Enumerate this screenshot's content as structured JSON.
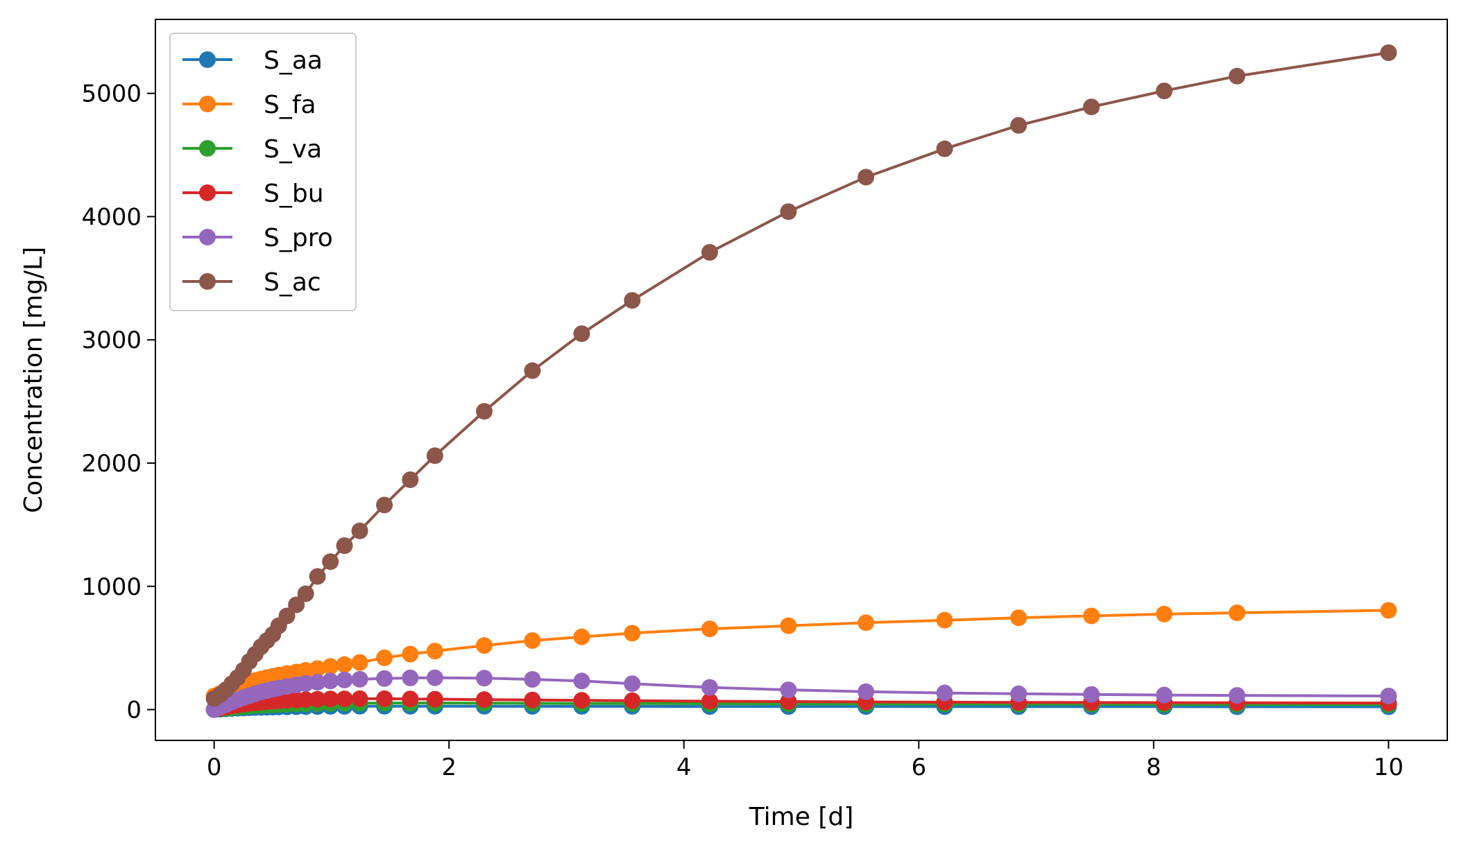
{
  "chart_data": {
    "type": "line",
    "title": "",
    "xlabel": "Time [d]",
    "ylabel": "Concentration [mg/L]",
    "xlim": [
      -0.5,
      10.5
    ],
    "ylim": [
      -250,
      5600
    ],
    "xticks": [
      0,
      2,
      4,
      6,
      8,
      10
    ],
    "yticks": [
      0,
      1000,
      2000,
      3000,
      4000,
      5000
    ],
    "grid": false,
    "legend": "top-left",
    "marker": "circle",
    "x": [
      0,
      0.05,
      0.1,
      0.15,
      0.2,
      0.25,
      0.3,
      0.35,
      0.4,
      0.45,
      0.5,
      0.55,
      0.62,
      0.7,
      0.78,
      0.88,
      0.99,
      1.11,
      1.24,
      1.45,
      1.67,
      1.88,
      2.3,
      2.71,
      3.13,
      3.56,
      4.22,
      4.89,
      5.55,
      6.22,
      6.85,
      7.47,
      8.09,
      8.71,
      10.0
    ],
    "series": [
      {
        "name": "S_aa",
        "color": "#1f77b4",
        "values": [
          0,
          3,
          6,
          9,
          11,
          13,
          15,
          17,
          18,
          19,
          20,
          21,
          22,
          23,
          24,
          25,
          26,
          26,
          27,
          27,
          27,
          27,
          27,
          26,
          26,
          26,
          25,
          25,
          25,
          24,
          24,
          24,
          24,
          23,
          23
        ]
      },
      {
        "name": "S_fa",
        "color": "#ff7f0e",
        "values": [
          110,
          130,
          150,
          170,
          190,
          205,
          220,
          235,
          248,
          260,
          270,
          280,
          293,
          305,
          318,
          333,
          350,
          365,
          382,
          420,
          450,
          475,
          520,
          560,
          590,
          620,
          655,
          680,
          705,
          725,
          745,
          760,
          775,
          785,
          805
        ]
      },
      {
        "name": "S_va",
        "color": "#2ca02c",
        "values": [
          0,
          5,
          10,
          15,
          20,
          24,
          28,
          31,
          34,
          37,
          39,
          41,
          43,
          45,
          47,
          49,
          50,
          51,
          52,
          53,
          53,
          53,
          52,
          51,
          50,
          49,
          48,
          47,
          46,
          45,
          44,
          43,
          42,
          41,
          40
        ]
      },
      {
        "name": "S_bu",
        "color": "#d62728",
        "values": [
          0,
          10,
          20,
          29,
          37,
          44,
          50,
          55,
          60,
          64,
          68,
          71,
          75,
          78,
          81,
          84,
          86,
          87,
          88,
          88,
          86,
          84,
          81,
          78,
          75,
          72,
          68,
          65,
          62,
          60,
          58,
          57,
          56,
          55,
          53
        ]
      },
      {
        "name": "S_pro",
        "color": "#9467bd",
        "values": [
          0,
          20,
          40,
          60,
          80,
          97,
          113,
          128,
          142,
          154,
          165,
          175,
          188,
          200,
          212,
          222,
          232,
          240,
          246,
          252,
          257,
          258,
          255,
          245,
          232,
          210,
          180,
          160,
          145,
          135,
          128,
          123,
          118,
          115,
          110
        ]
      },
      {
        "name": "S_ac",
        "color": "#8c564b",
        "values": [
          90,
          120,
          160,
          210,
          260,
          320,
          390,
          450,
          510,
          560,
          610,
          680,
          760,
          850,
          940,
          1080,
          1200,
          1330,
          1450,
          1660,
          1865,
          2060,
          2420,
          2750,
          3050,
          3320,
          3710,
          4040,
          4320,
          4550,
          4740,
          4890,
          5020,
          5140,
          5330
        ]
      }
    ]
  }
}
